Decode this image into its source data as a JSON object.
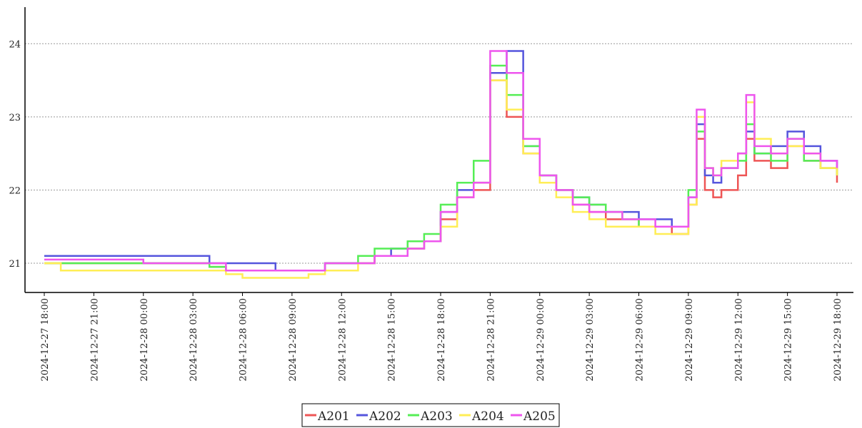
{
  "chart_data": {
    "type": "line",
    "title": "",
    "xlabel": "",
    "ylabel": "",
    "ylim": [
      20.6,
      24.5
    ],
    "y_ticks": [
      21,
      22,
      23,
      24
    ],
    "y_tick_labels": [
      "21",
      "22",
      "23",
      "24"
    ],
    "grid": "horizontal dotted",
    "legend_placement": "bottom-center",
    "x_range_hours": [
      0,
      48
    ],
    "x_tick_hours": [
      0,
      3,
      6,
      9,
      12,
      15,
      18,
      21,
      24,
      27,
      30,
      33,
      36,
      39,
      42,
      45,
      48
    ],
    "x_tick_labels": [
      "2024-12-27 18:00",
      "2024-12-27 21:00",
      "2024-12-28 00:00",
      "2024-12-28 03:00",
      "2024-12-28 06:00",
      "2024-12-28 09:00",
      "2024-12-28 12:00",
      "2024-12-28 15:00",
      "2024-12-28 18:00",
      "2024-12-28 21:00",
      "2024-12-29 00:00",
      "2024-12-29 03:00",
      "2024-12-29 06:00",
      "2024-12-29 09:00",
      "2024-12-29 12:00",
      "2024-12-29 15:00",
      "2024-12-29 18:00"
    ],
    "x": [
      0,
      1,
      2,
      3,
      4,
      5,
      6,
      7,
      8,
      9,
      10,
      11,
      12,
      13,
      14,
      15,
      16,
      17,
      18,
      19,
      20,
      21,
      22,
      23,
      24,
      25,
      26,
      27,
      28,
      29,
      30,
      31,
      32,
      33,
      34,
      35,
      36,
      37,
      38,
      39,
      39.5,
      40,
      40.5,
      41,
      42,
      42.5,
      43,
      44,
      45,
      46,
      47,
      48
    ],
    "series": [
      {
        "name": "A201",
        "color": "#ee5555",
        "values": [
          21.0,
          21.0,
          21.0,
          21.0,
          21.0,
          21.0,
          21.0,
          21.0,
          21.0,
          21.0,
          20.95,
          20.9,
          20.9,
          20.9,
          20.9,
          20.9,
          20.9,
          21.0,
          21.0,
          21.0,
          21.1,
          21.1,
          21.2,
          21.3,
          21.6,
          21.9,
          22.0,
          23.5,
          23.0,
          22.5,
          22.2,
          22.0,
          21.8,
          21.7,
          21.6,
          21.6,
          21.5,
          21.5,
          21.4,
          21.8,
          22.7,
          22.0,
          21.9,
          22.0,
          22.2,
          22.7,
          22.4,
          22.3,
          22.6,
          22.4,
          22.3,
          22.1
        ]
      },
      {
        "name": "A202",
        "color": "#5555dd",
        "values": [
          21.1,
          21.1,
          21.1,
          21.1,
          21.1,
          21.1,
          21.1,
          21.1,
          21.1,
          21.1,
          21.0,
          21.0,
          21.0,
          21.0,
          20.9,
          20.9,
          20.9,
          21.0,
          21.0,
          21.0,
          21.1,
          21.2,
          21.2,
          21.3,
          21.7,
          22.0,
          22.1,
          23.6,
          23.9,
          22.6,
          22.2,
          22.0,
          21.9,
          21.8,
          21.7,
          21.7,
          21.6,
          21.6,
          21.5,
          21.9,
          22.9,
          22.2,
          22.1,
          22.3,
          22.5,
          22.8,
          22.5,
          22.6,
          22.8,
          22.6,
          22.4,
          22.3
        ]
      },
      {
        "name": "A203",
        "color": "#55ee55",
        "values": [
          21.0,
          21.0,
          21.0,
          21.0,
          21.0,
          21.0,
          21.0,
          21.0,
          21.0,
          21.0,
          20.95,
          20.9,
          20.9,
          20.9,
          20.9,
          20.9,
          20.9,
          21.0,
          21.0,
          21.1,
          21.2,
          21.2,
          21.3,
          21.4,
          21.8,
          22.1,
          22.4,
          23.7,
          23.3,
          22.6,
          22.2,
          22.0,
          21.9,
          21.8,
          21.7,
          21.6,
          21.5,
          21.5,
          21.5,
          22.0,
          22.8,
          22.3,
          22.2,
          22.3,
          22.4,
          22.9,
          22.5,
          22.4,
          22.7,
          22.4,
          22.3,
          22.2
        ]
      },
      {
        "name": "A204",
        "color": "#ffee55",
        "values": [
          21.0,
          20.9,
          20.9,
          20.9,
          20.9,
          20.9,
          20.9,
          20.9,
          20.9,
          20.9,
          20.9,
          20.85,
          20.8,
          20.8,
          20.8,
          20.8,
          20.85,
          20.9,
          20.9,
          21.0,
          21.1,
          21.1,
          21.2,
          21.3,
          21.5,
          21.9,
          22.1,
          23.5,
          23.1,
          22.5,
          22.1,
          21.9,
          21.7,
          21.6,
          21.5,
          21.5,
          21.5,
          21.4,
          21.4,
          21.8,
          23.0,
          22.3,
          22.2,
          22.4,
          22.5,
          23.2,
          22.7,
          22.5,
          22.6,
          22.5,
          22.3,
          22.2
        ]
      },
      {
        "name": "A205",
        "color": "#ee55ee",
        "values": [
          21.05,
          21.05,
          21.05,
          21.05,
          21.05,
          21.05,
          21.0,
          21.0,
          21.0,
          21.0,
          21.0,
          20.9,
          20.9,
          20.9,
          20.9,
          20.9,
          20.9,
          21.0,
          21.0,
          21.0,
          21.1,
          21.1,
          21.2,
          21.3,
          21.7,
          21.9,
          22.1,
          23.9,
          23.6,
          22.7,
          22.2,
          22.0,
          21.8,
          21.7,
          21.7,
          21.6,
          21.6,
          21.5,
          21.5,
          21.9,
          23.1,
          22.3,
          22.2,
          22.3,
          22.5,
          23.3,
          22.6,
          22.5,
          22.7,
          22.5,
          22.4,
          22.3
        ]
      }
    ]
  }
}
